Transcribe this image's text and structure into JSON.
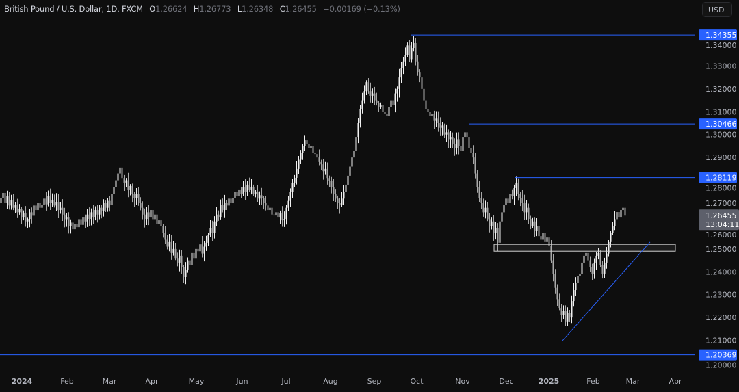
{
  "header": {
    "symbol": "British Pound / U.S. Dollar, 1D, FXCM",
    "open_label": "O",
    "open": "1.26624",
    "high_label": "H",
    "high": "1.26773",
    "low_label": "L",
    "low": "1.26348",
    "close_label": "C",
    "close": "1.26455",
    "change": "−0.00169 (−0.13%)"
  },
  "currency_button": "USD",
  "colors": {
    "background": "#0e0e0e",
    "up_candle": "#f0f0f0",
    "down_candle": "#a8a8a8",
    "level_line": "#2962ff",
    "badge": "#2962ff",
    "last_price_badge": "#5d606b"
  },
  "chart_data": {
    "type": "candlestick",
    "timeframe": "1D",
    "ylim": [
      1.2,
      1.35
    ],
    "y_ticks": [
      "1.20000",
      "1.21000",
      "1.22000",
      "1.23000",
      "1.24000",
      "1.25000",
      "1.26000",
      "1.27000",
      "1.28000",
      "1.29000",
      "1.30000",
      "1.31000",
      "1.32000",
      "1.33000",
      "1.34000"
    ],
    "x_ticks": [
      "2024",
      "Feb",
      "Mar",
      "Apr",
      "May",
      "Jun",
      "Jul",
      "Aug",
      "Sep",
      "Oct",
      "Nov",
      "Dec",
      "2025",
      "Feb",
      "Mar",
      "Apr"
    ],
    "first_open": 1.27,
    "close": [
      1.2721,
      1.2745,
      1.27,
      1.273,
      1.269,
      1.2715,
      1.268,
      1.2691,
      1.266,
      1.2675,
      1.264,
      1.2655,
      1.262,
      1.2631,
      1.266,
      1.2645,
      1.269,
      1.267,
      1.27,
      1.268,
      1.2691,
      1.272,
      1.2695,
      1.273,
      1.27,
      1.2715,
      1.269,
      1.2706,
      1.267,
      1.268,
      1.265,
      1.263,
      1.264,
      1.26,
      1.2615,
      1.2586,
      1.261,
      1.2595,
      1.263,
      1.2605,
      1.264,
      1.262,
      1.265,
      1.2631,
      1.266,
      1.264,
      1.267,
      1.265,
      1.268,
      1.2665,
      1.27,
      1.268,
      1.271,
      1.2691,
      1.274,
      1.277,
      1.28,
      1.283,
      1.2856,
      1.281,
      1.279,
      1.28,
      1.276,
      1.2775,
      1.274,
      1.2721,
      1.274,
      1.27,
      1.268,
      1.265,
      1.2631,
      1.266,
      1.264,
      1.267,
      1.263,
      1.265,
      1.261,
      1.2625,
      1.2601,
      1.257,
      1.254,
      1.251,
      1.253,
      1.2482,
      1.25,
      1.246,
      1.244,
      1.247,
      1.242,
      1.2377,
      1.241,
      1.245,
      1.243,
      1.2482,
      1.246,
      1.25,
      1.249,
      1.252,
      1.248,
      1.251,
      1.2527,
      1.256,
      1.259,
      1.257,
      1.262,
      1.265,
      1.264,
      1.2691,
      1.267,
      1.27,
      1.269,
      1.272,
      1.27,
      1.2721,
      1.275,
      1.273,
      1.276,
      1.274,
      1.277,
      1.275,
      1.2781,
      1.276,
      1.277,
      1.274,
      1.275,
      1.272,
      1.2735,
      1.2721,
      1.27,
      1.269,
      1.267,
      1.268,
      1.265,
      1.2646,
      1.266,
      1.264,
      1.2655,
      1.2625,
      1.2631,
      1.268,
      1.271,
      1.275,
      1.279,
      1.2811,
      1.285,
      1.289,
      1.292,
      1.295,
      1.2975,
      1.296,
      1.294,
      1.295,
      1.292,
      1.2915,
      1.29,
      1.288,
      1.287,
      1.284,
      1.285,
      1.281,
      1.2796,
      1.277,
      1.274,
      1.272,
      1.27,
      1.2691,
      1.272,
      1.275,
      1.2781,
      1.282,
      1.286,
      1.29,
      1.293,
      1.299,
      1.305,
      1.311,
      1.315,
      1.319,
      1.3229,
      1.319,
      1.317,
      1.318,
      1.315,
      1.314,
      1.312,
      1.313,
      1.31,
      1.309,
      1.308,
      1.312,
      1.315,
      1.313,
      1.318,
      1.32,
      1.325,
      1.329,
      1.332,
      1.3349,
      1.339,
      1.333,
      1.3379,
      1.34,
      1.332,
      1.3274,
      1.325,
      1.32,
      1.315,
      1.311,
      1.31,
      1.308,
      1.309,
      1.306,
      1.307,
      1.305,
      1.303,
      1.304,
      1.3,
      1.301,
      1.298,
      1.299,
      1.296,
      1.294,
      1.298,
      1.295,
      1.293,
      1.299,
      1.301,
      1.299,
      1.294,
      1.292,
      1.29,
      1.283,
      1.277,
      1.2721,
      1.27,
      1.266,
      1.268,
      1.263,
      1.2601,
      1.262,
      1.257,
      1.259,
      1.2527,
      1.262,
      1.266,
      1.2691,
      1.272,
      1.27,
      1.274,
      1.273,
      1.2766,
      1.279,
      1.274,
      1.2721,
      1.27,
      1.266,
      1.268,
      1.2631,
      1.26,
      1.262,
      1.258,
      1.26,
      1.2556,
      1.254,
      1.257,
      1.253,
      1.255,
      1.2512,
      1.245,
      1.2392,
      1.233,
      1.228,
      1.2242,
      1.221,
      1.223,
      1.2183,
      1.222,
      1.22,
      1.2272,
      1.232,
      1.235,
      1.238,
      1.2392,
      1.244,
      1.247,
      1.2482,
      1.245,
      1.242,
      1.2392,
      1.244,
      1.247,
      1.2482,
      1.243,
      1.2392,
      1.244,
      1.248,
      1.253,
      1.2571,
      1.26,
      1.263,
      1.2661,
      1.264,
      1.267,
      1.268,
      1.26455
    ],
    "levels": [
      {
        "price": 1.34355,
        "label": "1.34355"
      },
      {
        "price": 1.30466,
        "label": "1.30466"
      },
      {
        "price": 1.28119,
        "label": "1.28119"
      },
      {
        "price": 1.20369,
        "label": "1.20369"
      }
    ],
    "support_zone": {
      "low": 1.249,
      "high": 1.252
    },
    "trendline": {
      "from_price": 1.2099,
      "to_price": 1.253
    },
    "last_price": {
      "label": "1.26455",
      "countdown": "13:04:11"
    }
  }
}
